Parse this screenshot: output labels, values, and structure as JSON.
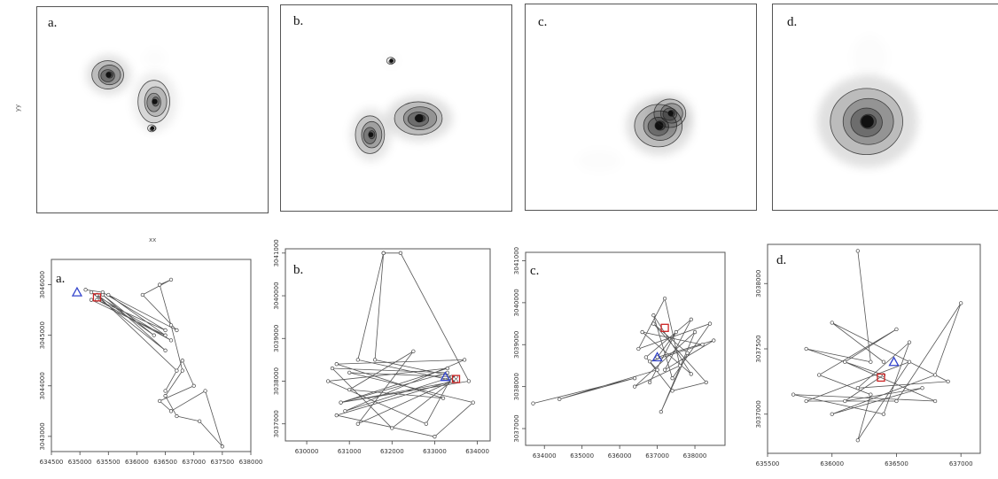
{
  "chart_data": [
    {
      "type": "heatmap",
      "panel_label": "a.",
      "ylabel": "yy",
      "xlabel": "xx",
      "hotspots": [
        {
          "x": 0.31,
          "y": 0.33,
          "w": 0.06,
          "h": 0.06,
          "i": 1.0
        },
        {
          "x": 0.51,
          "y": 0.46,
          "w": 0.06,
          "h": 0.09,
          "i": 0.6
        },
        {
          "x": 0.5,
          "y": 0.59,
          "w": 0.015,
          "h": 0.015,
          "i": 0.3
        },
        {
          "x": 0.51,
          "y": 0.25,
          "w": 0.03,
          "h": 0.03,
          "i": 0.08
        }
      ]
    },
    {
      "type": "heatmap",
      "panel_label": "b.",
      "hotspots": [
        {
          "x": 0.48,
          "y": 0.27,
          "w": 0.015,
          "h": 0.015,
          "i": 0.3
        },
        {
          "x": 0.6,
          "y": 0.55,
          "w": 0.09,
          "h": 0.07,
          "i": 1.0
        },
        {
          "x": 0.39,
          "y": 0.63,
          "w": 0.055,
          "h": 0.08,
          "i": 0.85
        }
      ]
    },
    {
      "type": "heatmap",
      "panel_label": "c.",
      "hotspots": [
        {
          "x": 0.58,
          "y": 0.59,
          "w": 0.09,
          "h": 0.09,
          "i": 1.0
        },
        {
          "x": 0.63,
          "y": 0.53,
          "w": 0.06,
          "h": 0.06,
          "i": 0.7
        },
        {
          "x": 0.32,
          "y": 0.76,
          "w": 0.06,
          "h": 0.035,
          "i": 0.1
        }
      ]
    },
    {
      "type": "heatmap",
      "panel_label": "d.",
      "hotspots": [
        {
          "x": 0.42,
          "y": 0.57,
          "w": 0.14,
          "h": 0.14,
          "i": 1.0
        },
        {
          "x": 0.43,
          "y": 0.26,
          "w": 0.05,
          "h": 0.07,
          "i": 0.08
        }
      ]
    },
    {
      "type": "line",
      "panel_label": "a.",
      "xlim": [
        634500,
        638000
      ],
      "ylim": [
        3042700,
        3046500
      ],
      "x_ticks": [
        "634500",
        "635000",
        "635500",
        "636000",
        "636500",
        "637000",
        "637500",
        "638000"
      ],
      "y_ticks": [
        "3043000",
        "3044000",
        "3045000",
        "3046000"
      ],
      "blue_marker": [
        634950,
        3045850
      ],
      "red_marker": [
        635300,
        3045750
      ],
      "track": [
        [
          635100,
          3045900
        ],
        [
          635400,
          3045850
        ],
        [
          636500,
          3045100
        ],
        [
          635300,
          3045700
        ],
        [
          636600,
          3044900
        ],
        [
          635200,
          3045850
        ],
        [
          636500,
          3044700
        ],
        [
          635400,
          3045800
        ],
        [
          636300,
          3045000
        ],
        [
          635300,
          3045800
        ],
        [
          636700,
          3044300
        ],
        [
          636500,
          3043900
        ],
        [
          636800,
          3044500
        ],
        [
          637000,
          3044000
        ],
        [
          636400,
          3043700
        ],
        [
          636600,
          3043500
        ],
        [
          637200,
          3043900
        ],
        [
          637500,
          3042800
        ],
        [
          637100,
          3043300
        ],
        [
          636700,
          3043400
        ],
        [
          636500,
          3043800
        ],
        [
          636800,
          3044300
        ],
        [
          636600,
          3045200
        ],
        [
          636400,
          3046000
        ],
        [
          636600,
          3046100
        ],
        [
          636100,
          3045800
        ],
        [
          636700,
          3045100
        ],
        [
          635500,
          3045800
        ],
        [
          636500,
          3045000
        ],
        [
          635200,
          3045700
        ]
      ]
    },
    {
      "type": "line",
      "panel_label": "b.",
      "xlim": [
        629500,
        634300
      ],
      "ylim": [
        3036600,
        3041100
      ],
      "x_ticks": [
        "630000",
        "631000",
        "632000",
        "633000",
        "634000"
      ],
      "y_ticks": [
        "3037000",
        "3038000",
        "3039000",
        "3040000",
        "3041000"
      ],
      "blue_marker": [
        633250,
        3038100
      ],
      "red_marker": [
        633500,
        3038050
      ],
      "track": [
        [
          631800,
          3041000
        ],
        [
          631200,
          3038500
        ],
        [
          633500,
          3038000
        ],
        [
          630800,
          3037500
        ],
        [
          633300,
          3038300
        ],
        [
          630500,
          3038000
        ],
        [
          632800,
          3037000
        ],
        [
          633400,
          3038100
        ],
        [
          630900,
          3037300
        ],
        [
          633700,
          3038500
        ],
        [
          630700,
          3038400
        ],
        [
          633200,
          3037600
        ],
        [
          631000,
          3037800
        ],
        [
          632500,
          3038700
        ],
        [
          631200,
          3037000
        ],
        [
          633400,
          3038000
        ],
        [
          632000,
          3036900
        ],
        [
          630600,
          3038300
        ],
        [
          633300,
          3038200
        ],
        [
          630800,
          3037500
        ],
        [
          633800,
          3038000
        ],
        [
          632200,
          3041000
        ],
        [
          631800,
          3041000
        ],
        [
          631600,
          3038500
        ],
        [
          633500,
          3038100
        ],
        [
          631000,
          3038200
        ],
        [
          633900,
          3037500
        ],
        [
          633000,
          3036700
        ],
        [
          630700,
          3037200
        ],
        [
          633400,
          3038000
        ]
      ]
    },
    {
      "type": "line",
      "panel_label": "c.",
      "xlim": [
        633500,
        638800
      ],
      "ylim": [
        3036600,
        3041200
      ],
      "x_ticks": [
        "634000",
        "635000",
        "636000",
        "637000",
        "638000"
      ],
      "y_ticks": [
        "3037000",
        "3038000",
        "3039000",
        "3040000",
        "3041000"
      ],
      "blue_marker": [
        637000,
        3038700
      ],
      "red_marker": [
        637200,
        3039400
      ],
      "track": [
        [
          633700,
          3037600
        ],
        [
          636400,
          3038200
        ],
        [
          634400,
          3037700
        ],
        [
          637000,
          3038400
        ],
        [
          636800,
          3038600
        ],
        [
          638200,
          3039000
        ],
        [
          636600,
          3039300
        ],
        [
          637900,
          3038300
        ],
        [
          636900,
          3039700
        ],
        [
          637400,
          3038200
        ],
        [
          638400,
          3039500
        ],
        [
          636500,
          3038900
        ],
        [
          637200,
          3040100
        ],
        [
          637600,
          3038500
        ],
        [
          636400,
          3038000
        ],
        [
          638000,
          3039300
        ],
        [
          637100,
          3037400
        ],
        [
          637800,
          3038800
        ],
        [
          636900,
          3039500
        ],
        [
          638300,
          3038100
        ],
        [
          637400,
          3037900
        ],
        [
          636700,
          3038700
        ],
        [
          637900,
          3039600
        ],
        [
          637200,
          3038400
        ],
        [
          638500,
          3039100
        ],
        [
          637000,
          3038700
        ],
        [
          637500,
          3039300
        ],
        [
          636800,
          3038100
        ]
      ]
    },
    {
      "type": "line",
      "panel_label": "d.",
      "xlim": [
        635500,
        637150
      ],
      "ylim": [
        3036700,
        3038300
      ],
      "x_ticks": [
        "635500",
        "636000",
        "636500",
        "637000"
      ],
      "y_ticks": [
        "3037000",
        "3037500",
        "3038000"
      ],
      "blue_marker": [
        636480,
        3037400
      ],
      "red_marker": [
        636380,
        3037280
      ],
      "track": [
        [
          636200,
          3038250
        ],
        [
          636300,
          3037400
        ],
        [
          635800,
          3037500
        ],
        [
          636400,
          3037300
        ],
        [
          636100,
          3037100
        ],
        [
          636700,
          3037200
        ],
        [
          636000,
          3037000
        ],
        [
          636800,
          3037300
        ],
        [
          637000,
          3037850
        ],
        [
          636500,
          3037100
        ],
        [
          635800,
          3037100
        ],
        [
          636600,
          3037400
        ],
        [
          636200,
          3036800
        ],
        [
          636300,
          3037150
        ],
        [
          635900,
          3037300
        ],
        [
          636500,
          3037650
        ],
        [
          636100,
          3037400
        ],
        [
          636800,
          3037100
        ],
        [
          635700,
          3037150
        ],
        [
          636400,
          3037000
        ],
        [
          636600,
          3037550
        ],
        [
          636200,
          3037200
        ],
        [
          636900,
          3037250
        ],
        [
          636000,
          3037700
        ],
        [
          636400,
          3037400
        ]
      ]
    }
  ]
}
